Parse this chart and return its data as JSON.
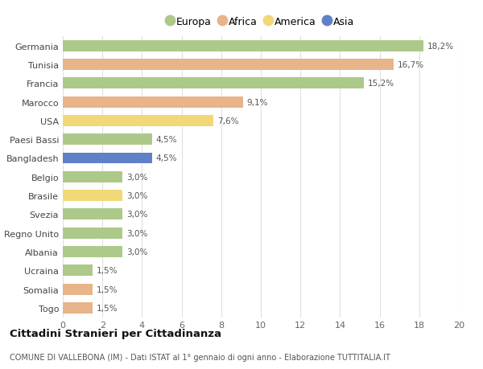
{
  "countries": [
    "Germania",
    "Tunisia",
    "Francia",
    "Marocco",
    "USA",
    "Paesi Bassi",
    "Bangladesh",
    "Belgio",
    "Brasile",
    "Svezia",
    "Regno Unito",
    "Albania",
    "Ucraina",
    "Somalia",
    "Togo"
  ],
  "values": [
    18.2,
    16.7,
    15.2,
    9.1,
    7.6,
    4.5,
    4.5,
    3.0,
    3.0,
    3.0,
    3.0,
    3.0,
    1.5,
    1.5,
    1.5
  ],
  "labels": [
    "18,2%",
    "16,7%",
    "15,2%",
    "9,1%",
    "7,6%",
    "4,5%",
    "4,5%",
    "3,0%",
    "3,0%",
    "3,0%",
    "3,0%",
    "3,0%",
    "1,5%",
    "1,5%",
    "1,5%"
  ],
  "categories": [
    "Europa",
    "Africa",
    "Europa",
    "Africa",
    "America",
    "Europa",
    "Asia",
    "Europa",
    "America",
    "Europa",
    "Europa",
    "Europa",
    "Europa",
    "Africa",
    "Africa"
  ],
  "colors": {
    "Europa": "#adc98a",
    "Africa": "#e8b48a",
    "America": "#f2d878",
    "Asia": "#6080c8"
  },
  "legend_order": [
    "Europa",
    "Africa",
    "America",
    "Asia"
  ],
  "legend_colors": [
    "#adc98a",
    "#e8b48a",
    "#f2d878",
    "#6080c8"
  ],
  "title": "Cittadini Stranieri per Cittadinanza",
  "subtitle": "COMUNE DI VALLEBONA (IM) - Dati ISTAT al 1° gennaio di ogni anno - Elaborazione TUTTITALIA.IT",
  "xlim": [
    0,
    20
  ],
  "xticks": [
    0,
    2,
    4,
    6,
    8,
    10,
    12,
    14,
    16,
    18,
    20
  ],
  "background_color": "#ffffff",
  "grid_color": "#e0e0e0",
  "bar_height": 0.6
}
